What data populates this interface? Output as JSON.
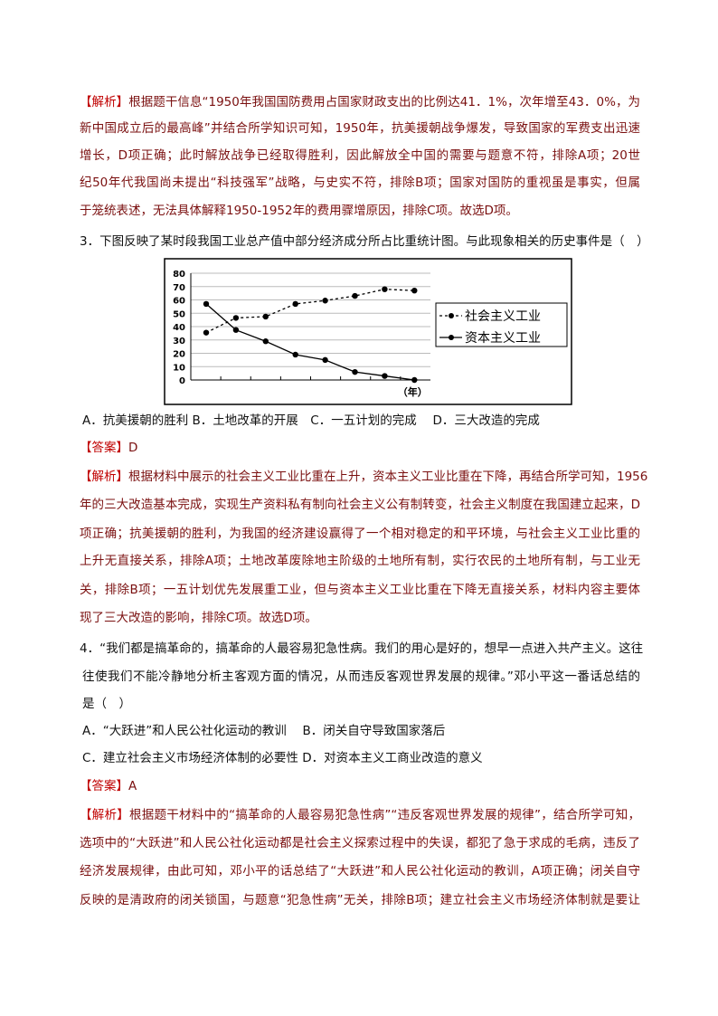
{
  "q2_analysis": {
    "tag": "【解析】",
    "lines": [
      "根据题干信息“1950年我国国防费用占国家财政支出的比例达41．1%，次年增至43．0%，为",
      "新中国成立后的最高峰”并结合所学知识可知，1950年，抗美援朝战争爆发，导致国家的军费支出迅速",
      "增长，D项正确；此时解放战争已经取得胜利，因此解放全中国的需要与题意不符，排除A项；20世",
      "纪50年代我国尚未提出“科技强军”战略，与史实不符，排除B项；国家对国防的重视虽是事实，但属",
      "于笼统表述，无法具体解释1950-1952年的费用骤增原因，排除C项。故选D项。"
    ]
  },
  "q3": {
    "stem": "3．下图反映了某时段我国工业总产值中部分经济成分所占比重统计图。与此现象相关的历史事件是（　）",
    "options": "A．抗美援朝的胜利 B．土地改革的开展　C．一五计划的完成　 D．三大改造的完成",
    "answer_tag": "【答案】",
    "answer": "D",
    "analysis_tag": "【解析】",
    "analysis_lines": [
      "根据材料中展示的社会主义工业比重在上升，资本主义工业比重在下降，再结合所学可知，1956",
      "年的三大改造基本完成，实现生产资料私有制向社会主义公有制转变，社会主义制度在我国建立起来，D",
      "项正确；抗美援朝的胜利，为我国的经济建设赢得了一个相对稳定的和平环境，与社会主义工业比重的",
      "上升无直接关系，排除A项；土地改革废除地主阶级的土地所有制，实行农民的土地所有制，与工业无",
      "关，排除B项；一五计划优先发展重工业，但与资本主义工业比重在下降无直接关系，材料内容主要体",
      "现了三大改造的影响，排除C项。故选D项。"
    ]
  },
  "chart_data": {
    "type": "line",
    "xlabel": "（年）",
    "ylabel": "",
    "ylim": [
      0,
      80
    ],
    "yticks": [
      "0",
      "10",
      "20",
      "30",
      "40",
      "50",
      "60",
      "70",
      "80"
    ],
    "grid": true,
    "legend": "right",
    "x": [
      1,
      2,
      3,
      4,
      5,
      6,
      7,
      8
    ],
    "series": [
      {
        "name": "社会主义工业",
        "style": "dashed",
        "values": [
          35.5,
          46.5,
          47.5,
          57,
          59.5,
          63,
          68,
          67
        ]
      },
      {
        "name": "资本主义工业",
        "style": "solid",
        "values": [
          57,
          37.5,
          29,
          19,
          15,
          6,
          3,
          0
        ]
      }
    ]
  },
  "q4": {
    "stem_lines": [
      "4．“我们都是搞革命的，搞革命的人最容易犯急性病。我们的用心是好的，想早一点进入共产主义。这往",
      "往使我们不能冷静地分析主客观方面的情况，从而违反客观世界发展的规律。”邓小平这一番话总结的",
      "是（　）"
    ],
    "option_lines": [
      "A．“大跃进”和人民公社化运动的教训　 B．闭关自守导致国家落后",
      "C．建立社会主义市场经济体制的必要性 D．对资本主义工商业改造的意义"
    ],
    "answer_tag": "【答案】",
    "answer": "A",
    "analysis_tag": "【解析】",
    "analysis_lines": [
      "根据题干材料中的“搞革命的人最容易犯急性病”“违反客观世界发展的规律”，结合所学可知，",
      "选项中的“大跃进”和人民公社化运动都是社会主义探索过程中的失误，都犯了急于求成的毛病，违反了",
      "经济发展规律，由此可知，邓小平的话总结了“大跃进”和人民公社化运动的教训，A项正确；闭关自守",
      "反映的是清政府的闭关锁国，与题意“犯急性病”无关，排除B项；建立社会主义市场经济体制就是要让"
    ]
  },
  "colors": {
    "text": "#7a0f0f",
    "tag": "#c00000",
    "question": "#111111"
  }
}
